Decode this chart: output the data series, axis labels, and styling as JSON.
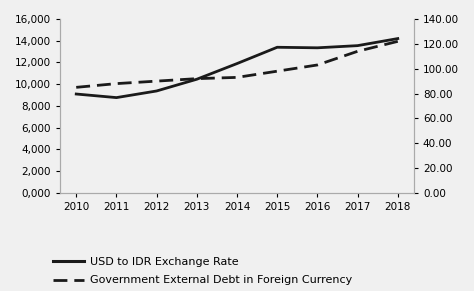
{
  "years": [
    2010,
    2011,
    2012,
    2013,
    2014,
    2015,
    2016,
    2017,
    2018
  ],
  "usd_idr": [
    9100,
    8770,
    9380,
    10460,
    11900,
    13400,
    13350,
    13550,
    14200
  ],
  "ext_debt": [
    85,
    88,
    90,
    92,
    93,
    98,
    103,
    114,
    122
  ],
  "left_ylim": [
    0,
    16000
  ],
  "left_yticks": [
    0,
    2000,
    4000,
    6000,
    8000,
    10000,
    12000,
    14000,
    16000
  ],
  "right_ylim": [
    0,
    140
  ],
  "right_yticks": [
    0,
    20,
    40,
    60,
    80,
    100,
    120,
    140
  ],
  "line1_label": "USD to IDR Exchange Rate",
  "line2_label": "Government External Debt in Foreign Currency",
  "line_color": "#1a1a1a",
  "bg_color": "#f0f0f0",
  "plot_bg": "#f0f0f0",
  "legend_fontsize": 8.0,
  "tick_fontsize": 7.5,
  "linewidth_solid": 2.0,
  "linewidth_dash": 2.0
}
